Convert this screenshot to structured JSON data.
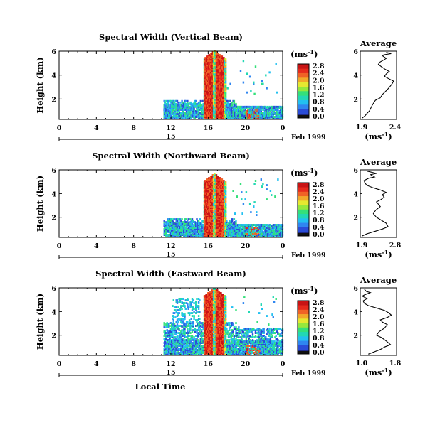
{
  "chart_data": [
    {
      "type": "heatmap",
      "title": "Spectral Width (Vertical Beam)",
      "xlabel": "Local Time",
      "ylabel": "Height (km)",
      "xticks": [
        "0",
        "4",
        "8",
        "12",
        "16",
        "20",
        "0"
      ],
      "xlim": [
        0,
        24
      ],
      "yticks": [
        "2",
        "4",
        "6"
      ],
      "ylim": [
        0.3,
        6.0
      ],
      "date_day": "15",
      "date_label": "Feb 1999",
      "colorbar": {
        "unit_base": "(ms",
        "unit_exp": "-1",
        "unit_close": ")",
        "ticks": [
          "0.0",
          "0.4",
          "0.8",
          "1.2",
          "1.6",
          "2.0",
          "2.4",
          "2.8"
        ]
      },
      "average": {
        "title": "Average",
        "xlabel_base": "(ms",
        "xlabel_exp": "-1",
        "xlabel_close": ")",
        "xticks": [
          "1.9",
          "2.4"
        ],
        "xlim": [
          1.85,
          2.45
        ],
        "yticks": [
          "2",
          "4",
          "6"
        ],
        "ylim": [
          0.3,
          6.0
        ],
        "x": [
          1.88,
          1.93,
          1.96,
          2.0,
          2.02,
          2.05,
          2.1,
          2.18,
          2.22,
          2.3,
          2.35,
          2.38,
          2.4,
          2.32,
          2.25,
          2.28,
          2.33,
          2.26,
          2.2,
          2.15,
          2.18,
          2.25,
          2.28,
          2.22,
          2.24,
          2.36,
          2.28
        ],
        "y": [
          0.4,
          0.6,
          0.8,
          1.0,
          1.2,
          1.5,
          1.9,
          2.1,
          2.4,
          2.8,
          3.1,
          3.3,
          3.5,
          3.7,
          3.9,
          4.1,
          4.3,
          4.5,
          4.7,
          4.9,
          5.1,
          5.3,
          5.4,
          5.6,
          5.7,
          5.8,
          5.9
        ]
      }
    },
    {
      "type": "heatmap",
      "title": "Spectral Width (Northward Beam)",
      "xlabel": "Local Time",
      "ylabel": "Height (km)",
      "xticks": [
        "0",
        "4",
        "8",
        "12",
        "16",
        "20",
        "0"
      ],
      "xlim": [
        0,
        24
      ],
      "yticks": [
        "2",
        "4",
        "6"
      ],
      "ylim": [
        0.3,
        6.0
      ],
      "date_day": "15",
      "date_label": "Feb 1999",
      "colorbar": {
        "unit_base": "(ms",
        "unit_exp": "-1",
        "unit_close": ")",
        "ticks": [
          "0.0",
          "0.4",
          "0.8",
          "1.2",
          "1.6",
          "2.0",
          "2.4",
          "2.8"
        ]
      },
      "average": {
        "title": "Average",
        "xlabel_base": "(ms",
        "xlabel_exp": "-1",
        "xlabel_close": ")",
        "xticks": [
          "1.9",
          "2.8"
        ],
        "xlim": [
          1.88,
          2.82
        ],
        "yticks": [
          "2",
          "4",
          "6"
        ],
        "ylim": [
          0.3,
          6.0
        ],
        "x": [
          1.92,
          2.05,
          2.25,
          2.45,
          2.6,
          2.55,
          2.4,
          2.3,
          2.22,
          2.28,
          2.4,
          2.35,
          2.3,
          2.42,
          2.5,
          2.45,
          2.55,
          2.4,
          2.2,
          2.05,
          2.0,
          1.98,
          2.1,
          2.25,
          2.15,
          2.3,
          2.05
        ],
        "y": [
          0.4,
          0.6,
          0.8,
          1.0,
          1.2,
          1.5,
          1.8,
          2.0,
          2.3,
          2.6,
          2.9,
          3.1,
          3.3,
          3.5,
          3.7,
          3.9,
          4.1,
          4.3,
          4.5,
          4.7,
          4.9,
          5.1,
          5.3,
          5.4,
          5.6,
          5.7,
          5.9
        ]
      }
    },
    {
      "type": "heatmap",
      "title": "Spectral Width (Eastward Beam)",
      "xlabel": "Local Time",
      "ylabel": "Height (km)",
      "xticks": [
        "0",
        "4",
        "8",
        "12",
        "16",
        "20",
        "0"
      ],
      "xlim": [
        0,
        24
      ],
      "yticks": [
        "2",
        "4",
        "6"
      ],
      "ylim": [
        0.3,
        6.0
      ],
      "date_day": "15",
      "date_label": "Feb 1999",
      "colorbar": {
        "unit_base": "(ms",
        "unit_exp": "-1",
        "unit_close": ")",
        "ticks": [
          "0.0",
          "0.4",
          "0.8",
          "1.2",
          "1.6",
          "2.0",
          "2.4",
          "2.8"
        ]
      },
      "average": {
        "title": "Average",
        "xlabel_base": "(ms",
        "xlabel_exp": "-1",
        "xlabel_close": ")",
        "xticks": [
          "1.0",
          "1.8"
        ],
        "xlim": [
          0.95,
          1.85
        ],
        "yticks": [
          "2",
          "4",
          "6"
        ],
        "ylim": [
          0.3,
          6.0
        ],
        "x": [
          1.15,
          1.3,
          1.45,
          1.55,
          1.7,
          1.6,
          1.48,
          1.35,
          1.42,
          1.55,
          1.62,
          1.5,
          1.45,
          1.62,
          1.72,
          1.65,
          1.55,
          1.35,
          1.15,
          1.05,
          1.02,
          1.12,
          1.0,
          1.05,
          1.2,
          1.1,
          1.05
        ],
        "y": [
          0.4,
          0.6,
          0.8,
          1.0,
          1.2,
          1.5,
          1.8,
          2.0,
          2.3,
          2.6,
          2.9,
          3.1,
          3.3,
          3.5,
          3.7,
          3.9,
          4.1,
          4.3,
          4.5,
          4.7,
          4.9,
          5.1,
          5.3,
          5.4,
          5.6,
          5.7,
          5.9
        ]
      }
    }
  ]
}
